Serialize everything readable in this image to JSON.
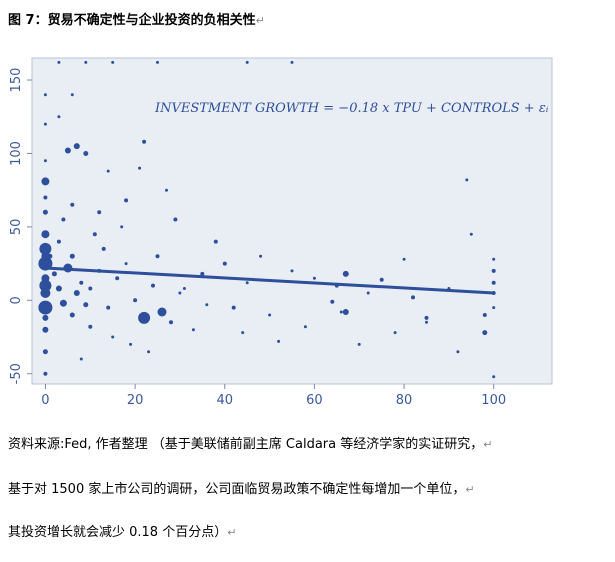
{
  "figure_title": "图 7：贸易不确定性与企业投资的负相关性",
  "paragraph_mark": "↵",
  "source_lines": [
    "资料来源:Fed, 作者整理 （基于美联储前副主席 Caldara 等经济学家的实证研究，",
    "基于对 1500 家上市公司的调研，公司面临贸易政策不确定性每增加一个单位，",
    "其投资增长就会减少 0.18 个百分点）"
  ],
  "chart_data": {
    "type": "scatter",
    "annotation": "INVESTMENT GROWTH = −0.18 x TPU +  CONTROLS +  εᵢ",
    "xlim": [
      -3,
      113
    ],
    "ylim": [
      -57,
      165
    ],
    "xticks": [
      0,
      20,
      40,
      60,
      80,
      100
    ],
    "yticks": [
      -50,
      0,
      50,
      100,
      150
    ],
    "grid": false,
    "colors": {
      "marker": "#2e4f9c",
      "line": "#2e4f9c",
      "panel_bg": "#e9eef4",
      "panel_border": "#b8c4d4",
      "axis_text": "#3a5a9a"
    },
    "fit_line": {
      "x": [
        0,
        100
      ],
      "y": [
        22,
        5
      ]
    },
    "points": [
      [
        0,
        -5,
        7
      ],
      [
        0,
        10,
        6
      ],
      [
        0,
        25,
        7
      ],
      [
        0,
        35,
        6
      ],
      [
        0,
        45,
        4
      ],
      [
        0,
        81,
        4
      ],
      [
        0,
        -20,
        3
      ],
      [
        0,
        -35,
        2.5
      ],
      [
        0,
        60,
        2.5
      ],
      [
        0,
        120,
        1.5
      ],
      [
        0,
        140,
        1.5
      ],
      [
        0,
        -50,
        2
      ],
      [
        0,
        15,
        4
      ],
      [
        0,
        -12,
        3
      ],
      [
        0,
        5,
        5
      ],
      [
        0,
        30,
        4
      ],
      [
        0,
        70,
        2
      ],
      [
        0,
        95,
        1.5
      ],
      [
        22,
        -12,
        6
      ],
      [
        26,
        -8,
        4.5
      ],
      [
        5,
        22,
        4.5
      ],
      [
        4,
        -2,
        3.5
      ],
      [
        2,
        18,
        2.5
      ],
      [
        3,
        40,
        2
      ],
      [
        1,
        30,
        2.5
      ],
      [
        7,
        5,
        3
      ],
      [
        8,
        12,
        2
      ],
      [
        9,
        -3,
        2.5
      ],
      [
        10,
        8,
        2
      ],
      [
        12,
        20,
        2
      ],
      [
        14,
        -5,
        2
      ],
      [
        16,
        15,
        2
      ],
      [
        18,
        25,
        1.5
      ],
      [
        20,
        0,
        2
      ],
      [
        24,
        10,
        2
      ],
      [
        28,
        -15,
        2
      ],
      [
        30,
        5,
        1.5
      ],
      [
        6,
        -10,
        2.5
      ],
      [
        3,
        8,
        3
      ],
      [
        6,
        30,
        2.5
      ],
      [
        10,
        -18,
        2
      ],
      [
        15,
        -25,
        1.5
      ],
      [
        19,
        -30,
        1.5
      ],
      [
        8,
        -40,
        1.5
      ],
      [
        11,
        45,
        2
      ],
      [
        13,
        35,
        2
      ],
      [
        17,
        50,
        1.5
      ],
      [
        25,
        30,
        2
      ],
      [
        5,
        102,
        3
      ],
      [
        7,
        105,
        3
      ],
      [
        9,
        100,
        2.5
      ],
      [
        4,
        55,
        2
      ],
      [
        6,
        65,
        2
      ],
      [
        12,
        60,
        2
      ],
      [
        22,
        108,
        2
      ],
      [
        18,
        68,
        2
      ],
      [
        35,
        18,
        2
      ],
      [
        40,
        25,
        2
      ],
      [
        42,
        -5,
        2
      ],
      [
        45,
        12,
        1.5
      ],
      [
        50,
        -10,
        1.5
      ],
      [
        55,
        20,
        1.5
      ],
      [
        60,
        15,
        1.5
      ],
      [
        48,
        30,
        1.5
      ],
      [
        38,
        40,
        2
      ],
      [
        33,
        -20,
        1.5
      ],
      [
        29,
        55,
        2
      ],
      [
        27,
        75,
        1.5
      ],
      [
        21,
        90,
        1.5
      ],
      [
        65,
        10,
        2
      ],
      [
        67,
        18,
        3
      ],
      [
        66,
        -8,
        1.5
      ],
      [
        70,
        -30,
        1.5
      ],
      [
        72,
        5,
        1.5
      ],
      [
        75,
        14,
        2
      ],
      [
        78,
        -22,
        1.5
      ],
      [
        80,
        28,
        1.5
      ],
      [
        82,
        2,
        2
      ],
      [
        85,
        -15,
        1.5
      ],
      [
        90,
        8,
        1.5
      ],
      [
        92,
        -35,
        1.5
      ],
      [
        95,
        45,
        1.5
      ],
      [
        98,
        -10,
        2
      ],
      [
        98,
        -22,
        2.5
      ],
      [
        100,
        5,
        2
      ],
      [
        100,
        12,
        2
      ],
      [
        100,
        20,
        2
      ],
      [
        100,
        28,
        1.5
      ],
      [
        100,
        -5,
        1.5
      ],
      [
        100,
        -52,
        1.5
      ],
      [
        94,
        82,
        1.5
      ],
      [
        67,
        -8,
        3
      ],
      [
        85,
        -12,
        2
      ],
      [
        64,
        -1,
        2
      ],
      [
        58,
        -18,
        1.5
      ],
      [
        52,
        -28,
        1.5
      ],
      [
        44,
        -22,
        1.5
      ],
      [
        36,
        -3,
        1.5
      ],
      [
        31,
        8,
        1.5
      ],
      [
        23,
        -35,
        1.5
      ],
      [
        14,
        88,
        1.5
      ],
      [
        3,
        125,
        1.5
      ],
      [
        6,
        140,
        1.5
      ],
      [
        9,
        162,
        1.5
      ],
      [
        3,
        162,
        1.5
      ],
      [
        45,
        162,
        1.5
      ],
      [
        55,
        162,
        1.5
      ],
      [
        15,
        162,
        1.5
      ],
      [
        25,
        162,
        1.5
      ]
    ]
  }
}
